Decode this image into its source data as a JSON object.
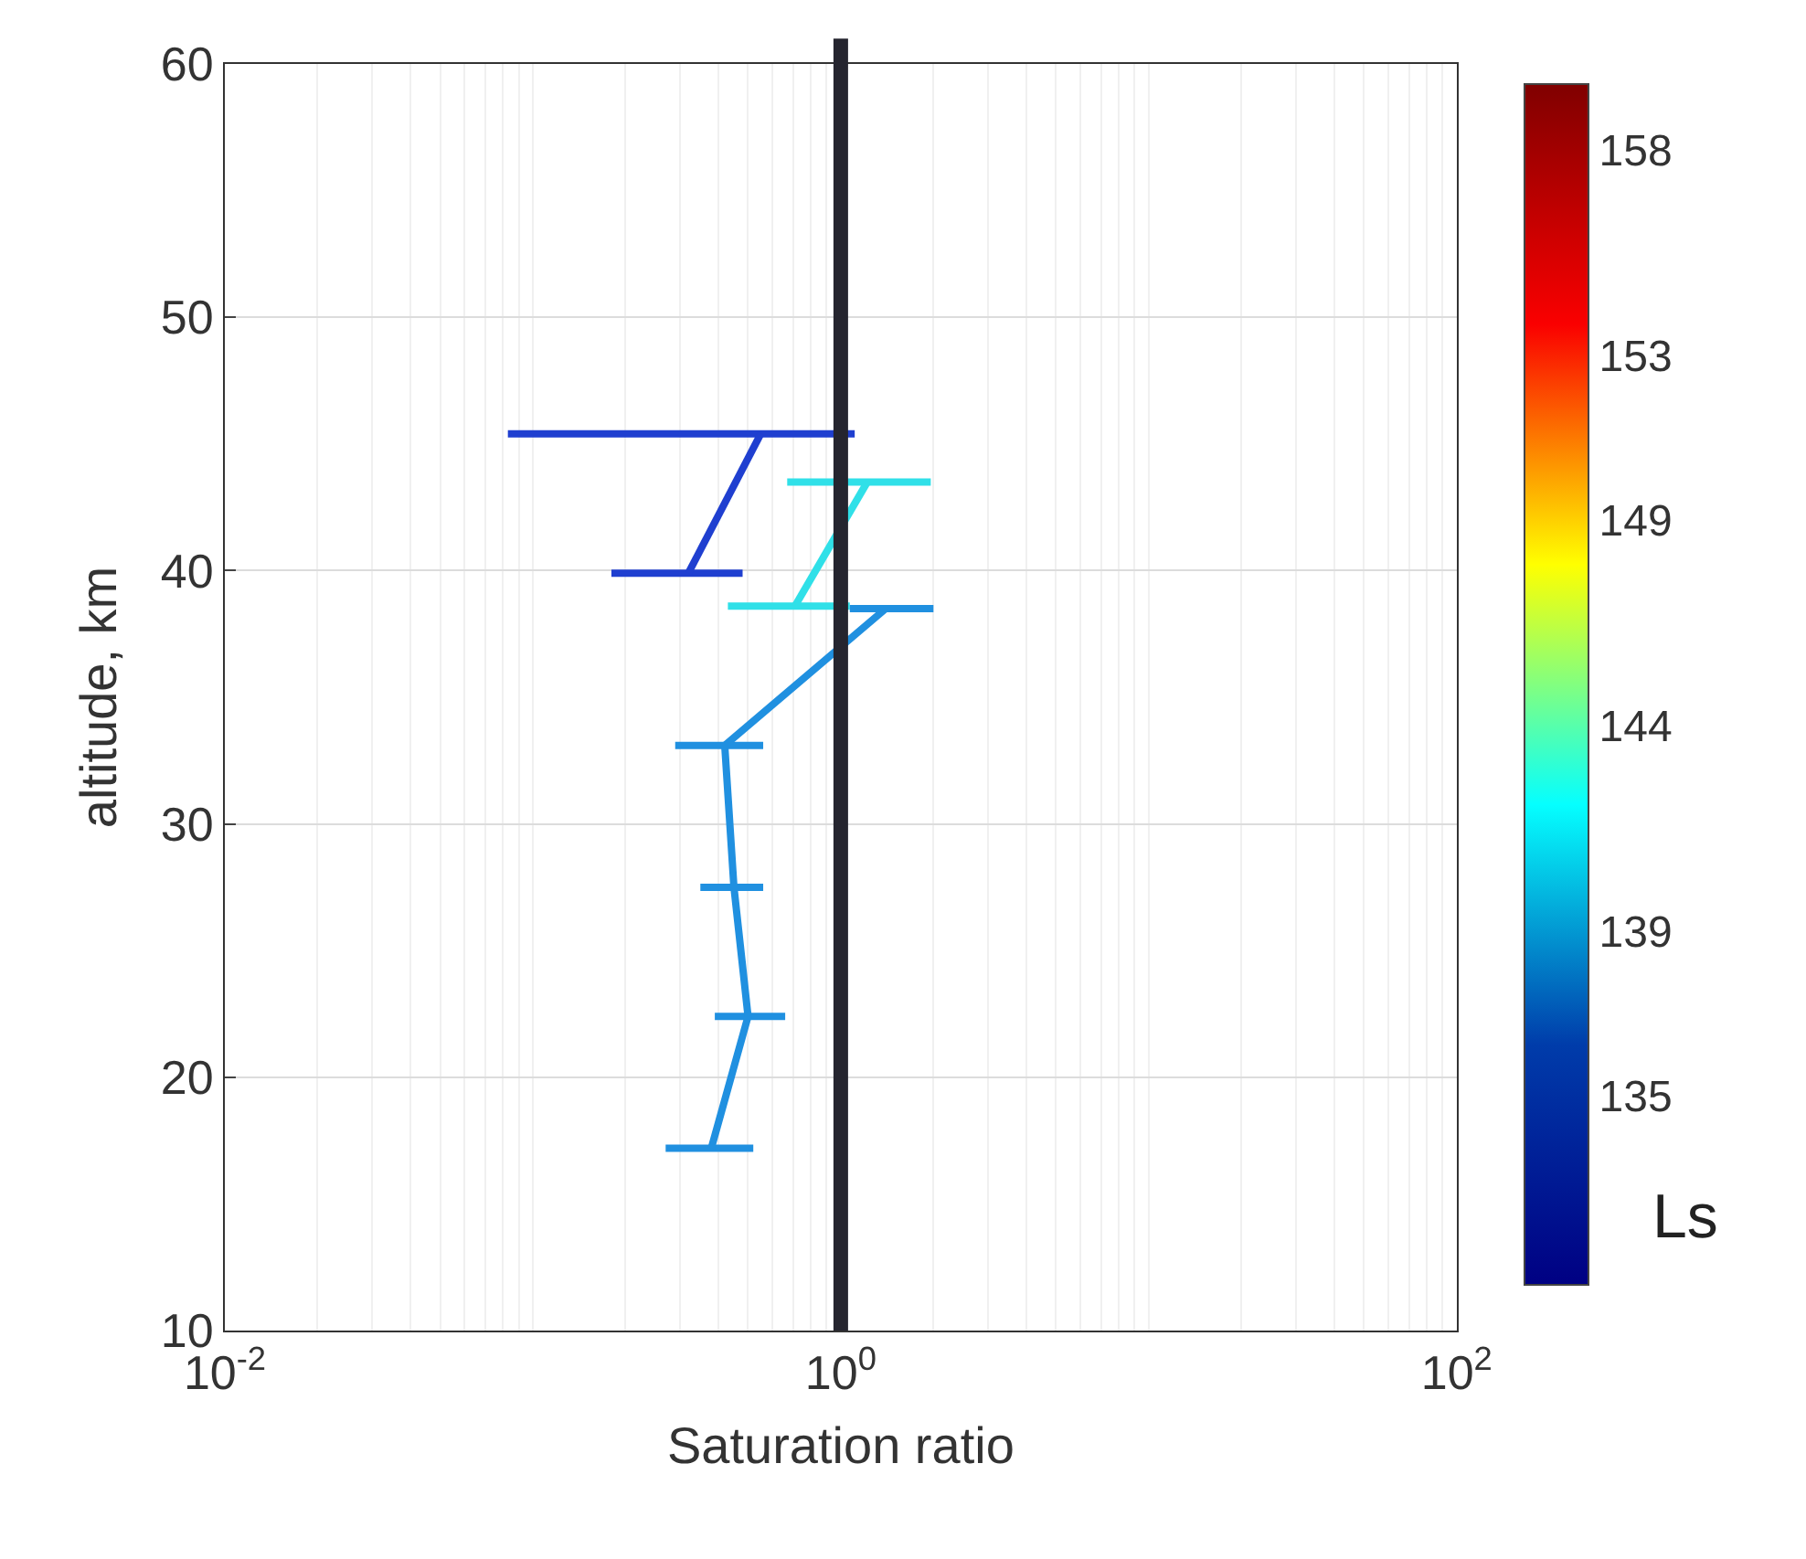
{
  "chart_data": {
    "type": "line",
    "xlabel": "Saturation ratio",
    "ylabel": "altitude, km",
    "clabel": "Ls",
    "log": "x",
    "xlim": [
      0.01,
      100
    ],
    "xticks": [
      {
        "value": 0.01,
        "label": "10$^{-2}$"
      },
      {
        "value": 1,
        "label": "10$^{0}$"
      },
      {
        "value": 100,
        "label": "10$^{2}$"
      }
    ],
    "ylim": [
      10,
      60
    ],
    "yticks": [
      10,
      20,
      30,
      40,
      50,
      60
    ],
    "grid": true,
    "marker": "none",
    "line_style": "solid",
    "clim": [
      130.4,
      159.6
    ],
    "cticks": [
      135,
      139,
      144,
      149,
      153,
      158
    ],
    "series": [
      {
        "color": "#1f3fd0",
        "x": [
          0.55,
          0.32
        ],
        "values": [
          45.4,
          39.9
        ],
        "xerrors": [
          [
            0.083,
            1.11
          ],
          [
            0.18,
            0.48
          ]
        ]
      },
      {
        "color": "#30e0e8",
        "x": [
          1.22,
          0.71
        ],
        "values": [
          43.5,
          38.6
        ],
        "xerrors": [
          [
            0.67,
            1.96
          ],
          [
            0.43,
            1.07
          ]
        ]
      },
      {
        "color": "#2090e0",
        "x": [
          1.4,
          0.42,
          0.45,
          0.5,
          0.38
        ],
        "values": [
          38.5,
          33.1,
          27.5,
          22.4,
          17.2
        ],
        "xerrors": [
          [
            1.07,
            2.0
          ],
          [
            0.29,
            0.56
          ],
          [
            0.35,
            0.56
          ],
          [
            0.39,
            0.66
          ],
          [
            0.27,
            0.52
          ]
        ]
      }
    ],
    "ref_lines": [
      {
        "axis": "x",
        "value": 1,
        "color": "#25252f",
        "line_style": "solid"
      }
    ]
  }
}
